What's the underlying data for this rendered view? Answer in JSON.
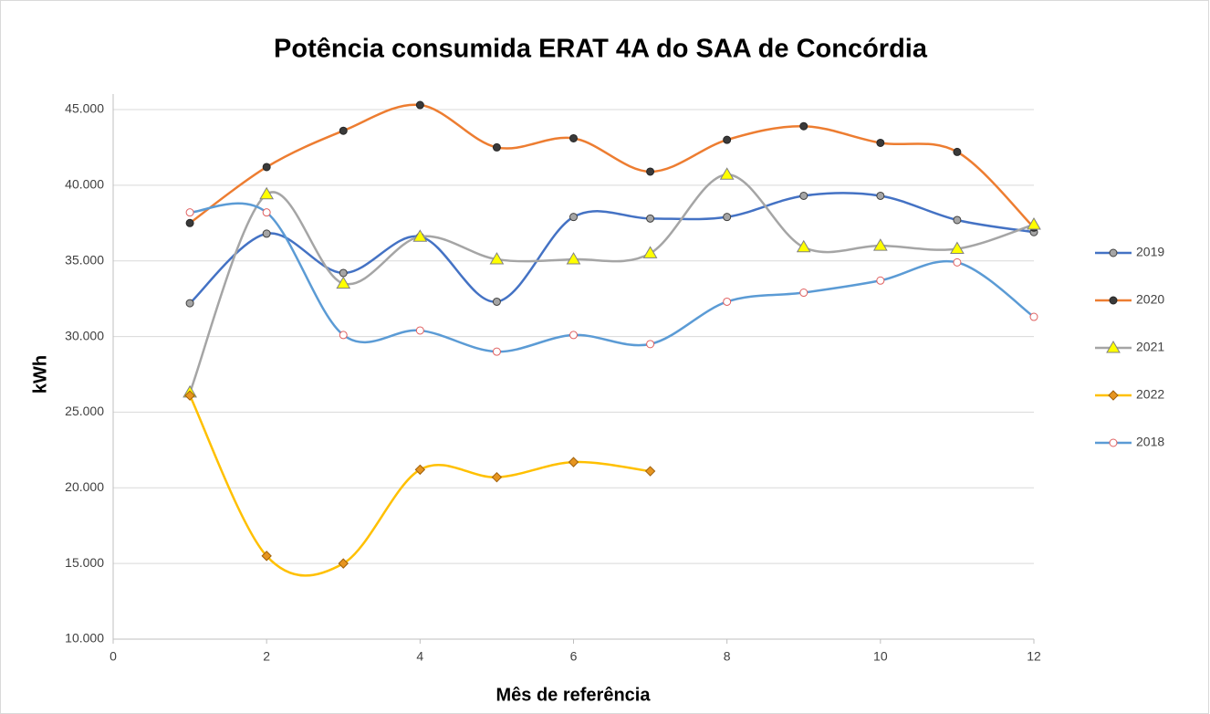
{
  "chart_data": {
    "type": "line",
    "smooth": true,
    "title": "Potência consumida ERAT 4A do SAA de Concórdia",
    "x_label": "Mês de referência",
    "y_label": "kWh",
    "x": [
      1,
      2,
      3,
      4,
      5,
      6,
      7,
      8,
      9,
      10,
      11,
      12
    ],
    "xlim": [
      0,
      12
    ],
    "xticks": [
      0,
      2,
      4,
      6,
      8,
      10,
      12
    ],
    "ylim": [
      10000,
      45000
    ],
    "yticks": [
      {
        "value": 10000,
        "label": "10.000"
      },
      {
        "value": 15000,
        "label": "15.000"
      },
      {
        "value": 20000,
        "label": "20.000"
      },
      {
        "value": 25000,
        "label": "25.000"
      },
      {
        "value": 30000,
        "label": "30.000"
      },
      {
        "value": 35000,
        "label": "35.000"
      },
      {
        "value": 40000,
        "label": "40.000"
      },
      {
        "value": 45000,
        "label": "45.000"
      }
    ],
    "grid": true,
    "legend": "right",
    "series": [
      {
        "name": "2019",
        "color": "#4472c4",
        "marker": "circle",
        "marker_fill": "#a5a5a5",
        "marker_stroke": "#404040",
        "values": [
          32200,
          36800,
          34200,
          36600,
          32300,
          37900,
          37800,
          37900,
          39300,
          39300,
          37700,
          36900
        ]
      },
      {
        "name": "2020",
        "color": "#ed7d31",
        "marker": "circle",
        "marker_fill": "#3a3a3a",
        "marker_stroke": "#262626",
        "values": [
          37500,
          41200,
          43600,
          45300,
          42500,
          43100,
          40900,
          43000,
          43900,
          42800,
          42200,
          37200
        ]
      },
      {
        "name": "2021",
        "color": "#a5a5a5",
        "marker": "triangle",
        "marker_fill": "#ffff00",
        "marker_stroke": "#808080",
        "values": [
          26300,
          39400,
          33500,
          36600,
          35100,
          35100,
          35500,
          40700,
          35900,
          36000,
          35800,
          37400
        ]
      },
      {
        "name": "2022",
        "color": "#ffc000",
        "marker": "diamond",
        "marker_fill": "#e69520",
        "marker_stroke": "#a0600a",
        "values": [
          26100,
          15500,
          15000,
          21200,
          20700,
          21700,
          21100,
          null,
          null,
          null,
          null,
          null
        ]
      },
      {
        "name": "2018",
        "color": "#5b9bd5",
        "marker": "circle",
        "marker_fill": "#ffffff",
        "marker_stroke": "#e06060",
        "values": [
          38200,
          38200,
          30100,
          30400,
          29000,
          30100,
          29500,
          32300,
          32900,
          33700,
          34900,
          31300
        ]
      }
    ]
  }
}
